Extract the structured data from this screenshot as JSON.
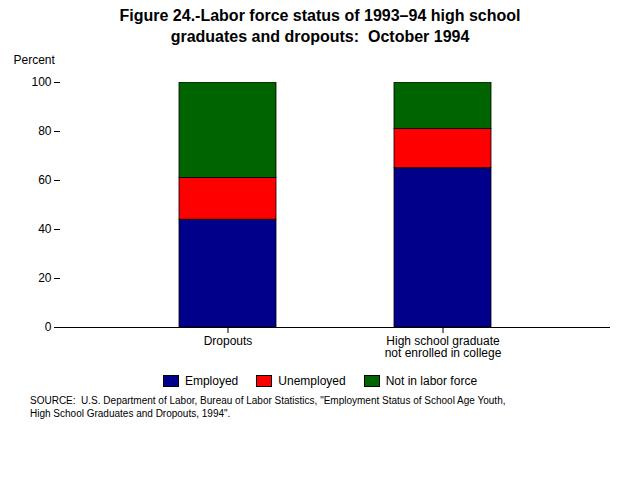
{
  "chart_data": {
    "type": "bar",
    "stacked": true,
    "title": "Figure 24.-Labor force status of 1993–94 high school\ngraduates and dropouts:  October 1994",
    "ylabel": "Percent",
    "categories": [
      "Dropouts",
      "High school graduate\nnot enrolled in college"
    ],
    "series": [
      {
        "name": "Employed",
        "color": "#00008B",
        "values": [
          44,
          65
        ]
      },
      {
        "name": "Unemployed",
        "color": "#FF0000",
        "values": [
          17,
          16
        ]
      },
      {
        "name": "Not in labor force",
        "color": "#006400",
        "values": [
          39,
          19
        ]
      }
    ],
    "ylim": [
      0,
      100
    ],
    "yticks": [
      0,
      20,
      40,
      60,
      80,
      100
    ],
    "grid": false,
    "legend": "bottom",
    "annotations": [
      "SOURCE:  U.S. Department of Labor, Bureau of Labor Statistics, \"Employment Status of School Age Youth,\nHigh School Graduates and Dropouts, 1994\"."
    ]
  }
}
